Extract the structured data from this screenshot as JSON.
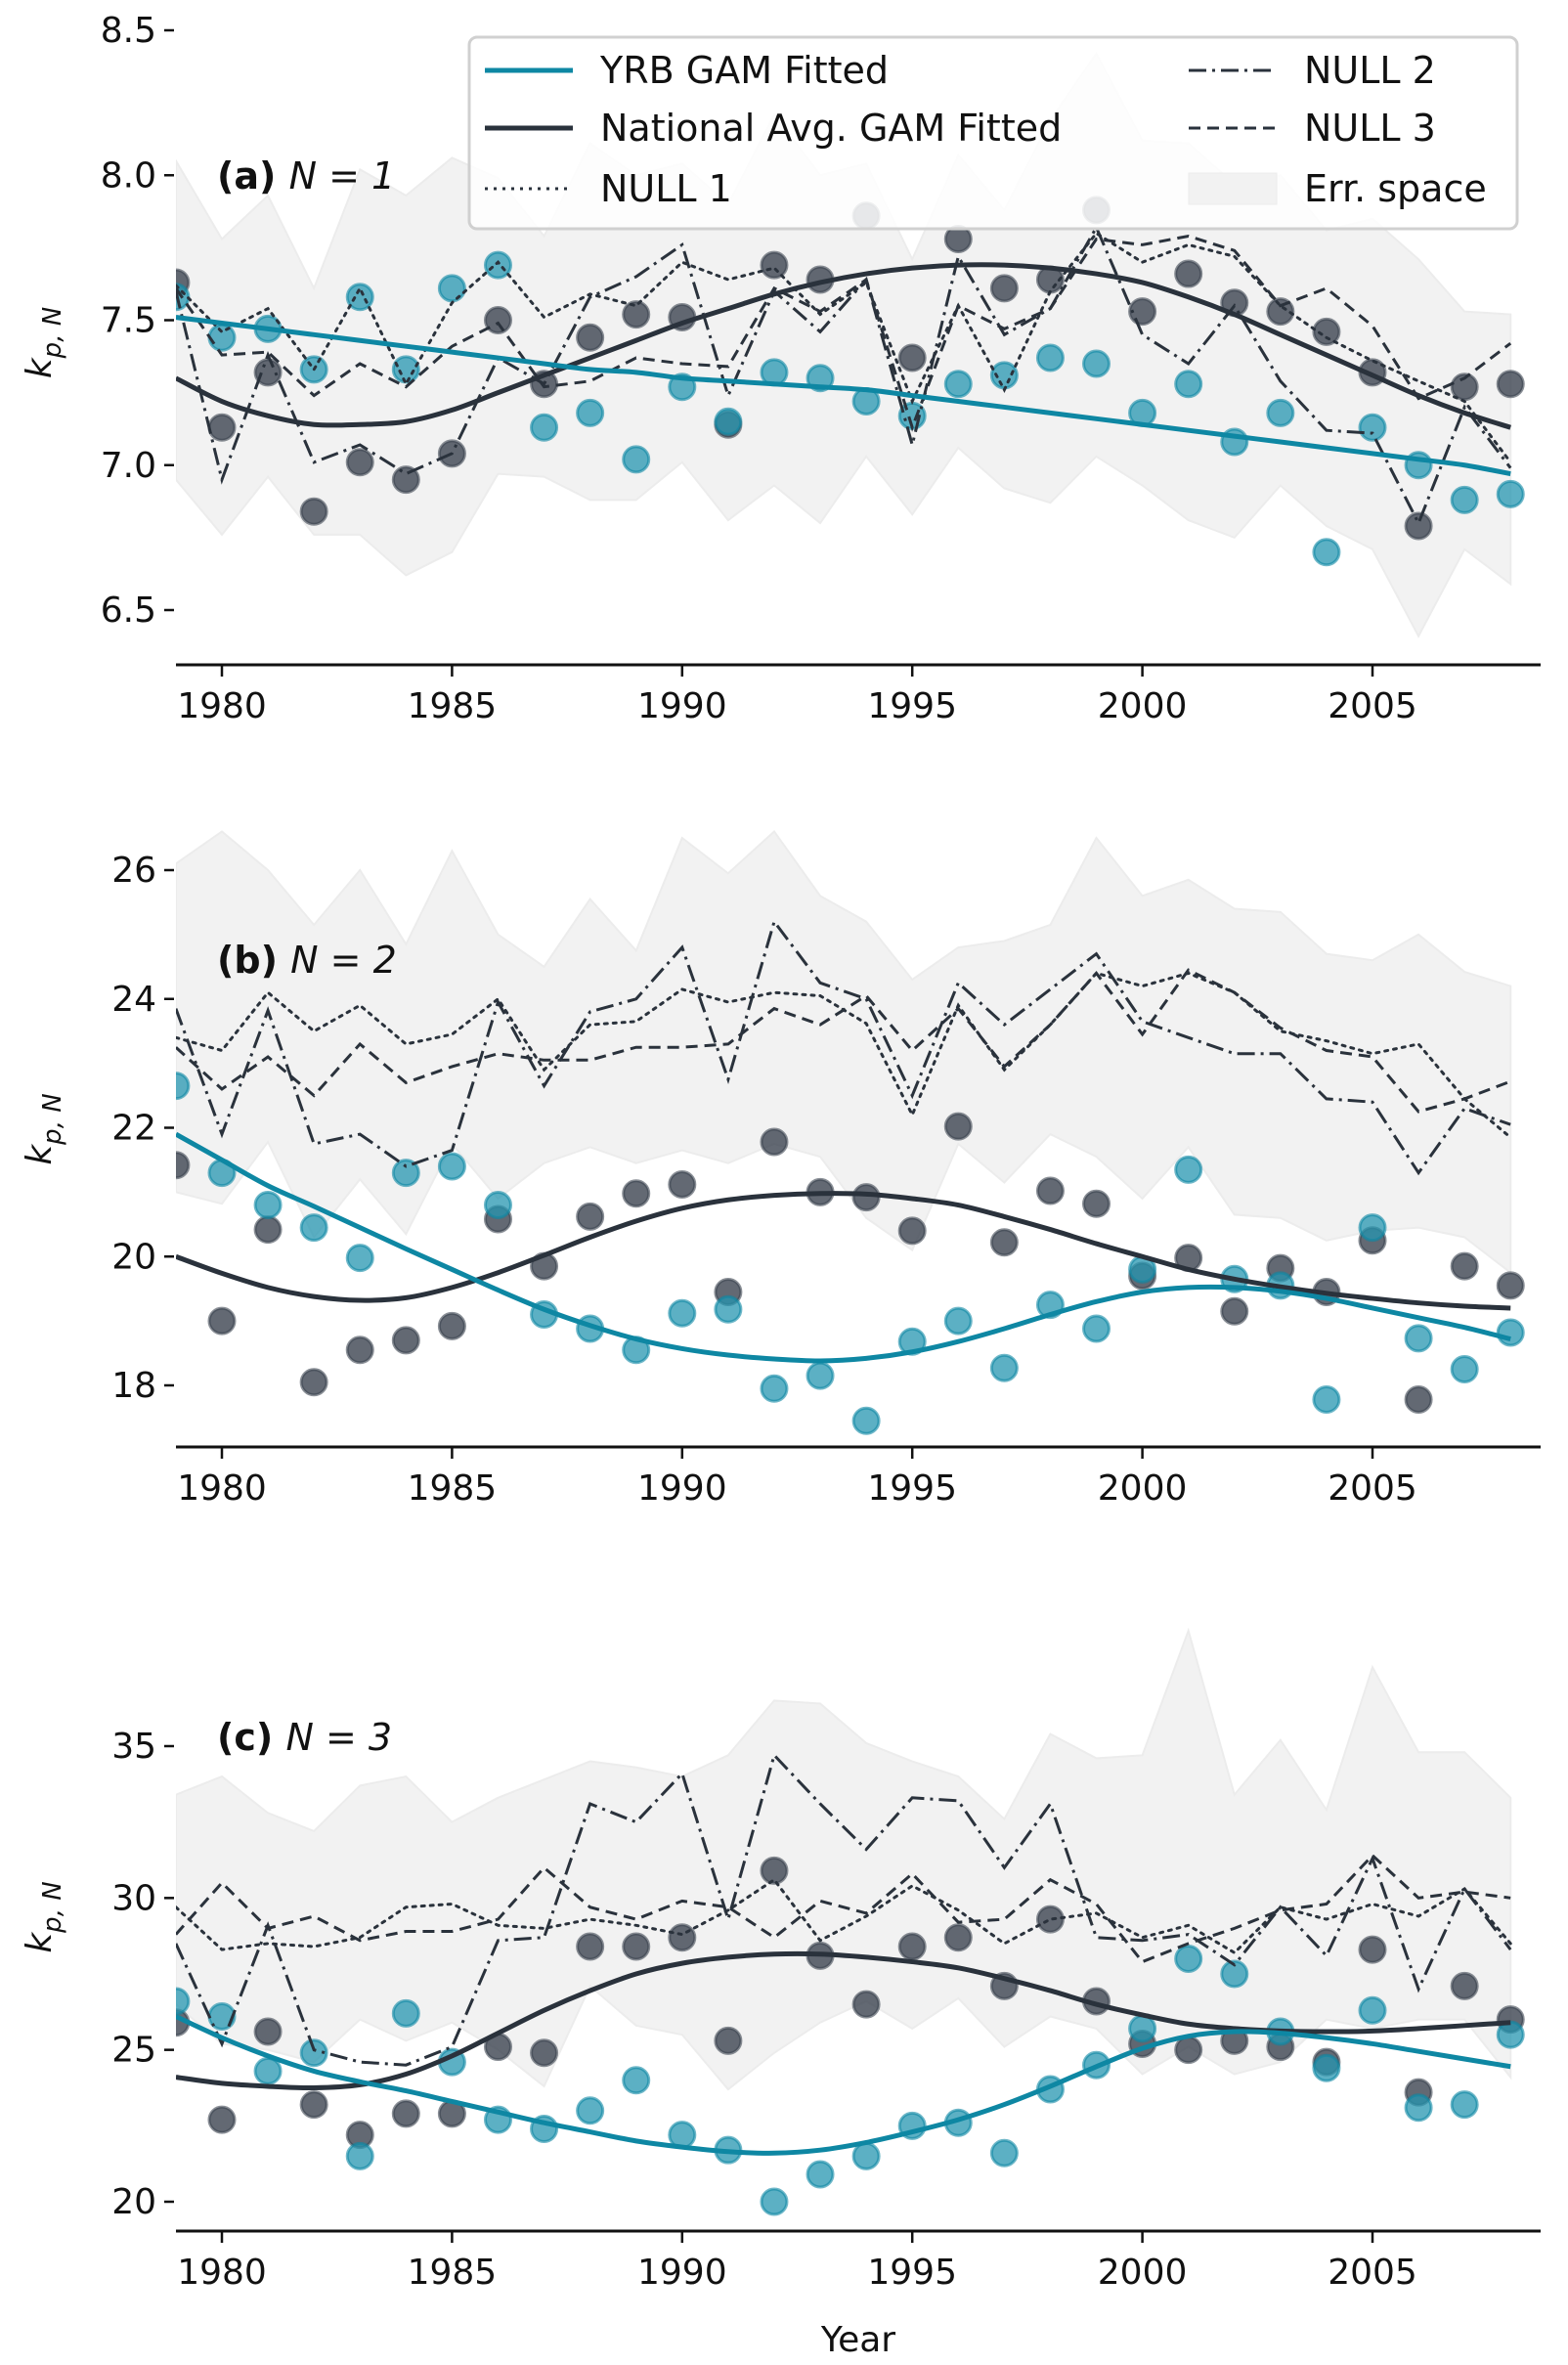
{
  "chart_data": {
    "type": "line",
    "colors": {
      "yrb": "#0e87a3",
      "national": "#2a323c",
      "null": "#2a323c",
      "err": "#f2f2f2"
    },
    "legend": {
      "placement": "top-right",
      "entries": [
        {
          "label": "YRB GAM Fitted",
          "style": "solid-yrb"
        },
        {
          "label": "National Avg. GAM Fitted",
          "style": "solid-national"
        },
        {
          "label": "NULL 1",
          "style": "dotted"
        },
        {
          "label": "NULL 2",
          "style": "dashdot"
        },
        {
          "label": "NULL 3",
          "style": "dashed"
        },
        {
          "label": "Err. space",
          "style": "patch"
        }
      ]
    },
    "xlabel": "Year",
    "x": [
      1979,
      1980,
      1981,
      1982,
      1983,
      1984,
      1985,
      1986,
      1987,
      1988,
      1989,
      1990,
      1991,
      1992,
      1993,
      1994,
      1995,
      1996,
      1997,
      1998,
      1999,
      2000,
      2001,
      2002,
      2003,
      2004,
      2005,
      2006,
      2007,
      2008
    ],
    "xticks": [
      1980,
      1985,
      1990,
      1995,
      2000,
      2005
    ],
    "xlim": [
      1978.5,
      2008
    ],
    "panels": [
      {
        "label_bold": "(a)",
        "label_rest": "N = 1",
        "ylabel": "k_{p,N}",
        "ylim": [
          6.3,
          8.55
        ],
        "yticks": [
          "6.5",
          "7.0",
          "7.5",
          "8.0",
          "8.5"
        ],
        "yrb_points": [
          7.58,
          7.44,
          7.47,
          7.33,
          7.58,
          7.33,
          7.61,
          7.69,
          7.13,
          7.18,
          7.02,
          7.27,
          7.15,
          7.32,
          7.3,
          7.22,
          7.17,
          7.28,
          7.31,
          7.37,
          7.35,
          7.18,
          7.28,
          7.08,
          7.18,
          6.7,
          7.13,
          7.0,
          6.88,
          6.9
        ],
        "national_points": [
          7.63,
          7.13,
          7.32,
          6.84,
          7.01,
          6.95,
          7.04,
          7.5,
          7.28,
          7.44,
          7.52,
          7.51,
          7.14,
          7.69,
          7.64,
          7.86,
          7.37,
          7.78,
          7.61,
          7.64,
          7.88,
          7.53,
          7.66,
          7.56,
          7.53,
          7.46,
          7.32,
          6.79,
          7.27,
          7.28
        ],
        "yrb_fit": [
          7.51,
          7.49,
          7.47,
          7.45,
          7.43,
          7.41,
          7.39,
          7.37,
          7.35,
          7.33,
          7.32,
          7.3,
          7.29,
          7.28,
          7.27,
          7.26,
          7.24,
          7.22,
          7.2,
          7.18,
          7.16,
          7.14,
          7.12,
          7.1,
          7.08,
          7.06,
          7.04,
          7.02,
          7.0,
          6.97
        ],
        "national_fit": [
          7.3,
          7.22,
          7.17,
          7.14,
          7.14,
          7.15,
          7.19,
          7.25,
          7.31,
          7.37,
          7.43,
          7.49,
          7.54,
          7.59,
          7.63,
          7.66,
          7.68,
          7.69,
          7.69,
          7.68,
          7.66,
          7.63,
          7.58,
          7.52,
          7.45,
          7.38,
          7.31,
          7.24,
          7.18,
          7.13
        ],
        "null1": [
          7.62,
          7.46,
          7.54,
          7.33,
          7.61,
          7.28,
          7.56,
          7.7,
          7.51,
          7.59,
          7.55,
          7.7,
          7.64,
          7.68,
          7.52,
          7.63,
          7.22,
          7.55,
          7.26,
          7.6,
          7.8,
          7.7,
          7.76,
          7.72,
          7.55,
          7.44,
          7.36,
          7.29,
          7.22,
          7.01
        ],
        "null2": [
          7.6,
          6.95,
          7.38,
          7.01,
          7.07,
          6.97,
          7.04,
          7.37,
          7.28,
          7.58,
          7.65,
          7.76,
          7.24,
          7.6,
          7.46,
          7.64,
          7.07,
          7.72,
          7.45,
          7.54,
          7.82,
          7.45,
          7.35,
          7.55,
          7.29,
          7.12,
          7.11,
          6.8,
          7.2,
          6.99
        ],
        "null3": [
          7.61,
          7.38,
          7.39,
          7.24,
          7.35,
          7.27,
          7.41,
          7.49,
          7.27,
          7.29,
          7.37,
          7.35,
          7.34,
          7.61,
          7.53,
          7.64,
          7.13,
          7.55,
          7.47,
          7.54,
          7.78,
          7.76,
          7.79,
          7.74,
          7.55,
          7.61,
          7.48,
          7.23,
          7.3,
          7.42
        ],
        "err_upper": [
          8.05,
          7.78,
          7.93,
          7.61,
          8.02,
          7.93,
          8.06,
          7.99,
          7.79,
          8.11,
          8.0,
          8.04,
          7.9,
          8.21,
          8.0,
          8.04,
          7.71,
          8.07,
          7.88,
          8.19,
          8.42,
          8.12,
          8.11,
          7.97,
          8.0,
          7.81,
          7.85,
          7.71,
          7.53,
          7.52
        ],
        "err_lower": [
          6.95,
          6.76,
          6.96,
          6.76,
          6.76,
          6.62,
          6.7,
          6.97,
          6.96,
          6.88,
          6.88,
          7.01,
          6.81,
          6.93,
          6.8,
          7.03,
          6.83,
          7.06,
          6.92,
          6.87,
          7.03,
          6.93,
          6.81,
          6.75,
          6.93,
          6.79,
          6.71,
          6.41,
          6.71,
          6.59
        ]
      },
      {
        "label_bold": "(b)",
        "label_rest": "N = 2",
        "ylabel": "k_{p,N}",
        "ylim": [
          17.0,
          26.9
        ],
        "yticks": [
          "18",
          "20",
          "22",
          "24",
          "26"
        ],
        "yrb_points": [
          22.65,
          21.3,
          20.8,
          20.45,
          19.98,
          21.3,
          21.4,
          20.8,
          19.1,
          18.88,
          18.55,
          19.12,
          19.18,
          17.95,
          18.15,
          17.45,
          18.68,
          19.0,
          18.27,
          19.25,
          18.88,
          19.8,
          21.35,
          19.65,
          19.55,
          17.78,
          20.45,
          18.73,
          18.25,
          18.82
        ],
        "national_points": [
          21.42,
          19.0,
          20.42,
          18.05,
          18.55,
          18.7,
          18.92,
          20.58,
          19.85,
          20.62,
          20.98,
          21.12,
          19.45,
          21.78,
          21.0,
          20.92,
          20.4,
          22.02,
          20.22,
          21.02,
          20.82,
          19.7,
          19.98,
          19.15,
          19.82,
          19.45,
          20.25,
          17.78,
          19.85,
          19.55
        ],
        "yrb_fit": [
          21.9,
          21.5,
          21.1,
          20.78,
          20.45,
          20.12,
          19.8,
          19.48,
          19.18,
          18.93,
          18.72,
          18.57,
          18.47,
          18.41,
          18.38,
          18.42,
          18.52,
          18.68,
          18.88,
          19.1,
          19.3,
          19.45,
          19.52,
          19.52,
          19.46,
          19.35,
          19.2,
          19.05,
          18.9,
          18.72
        ],
        "national_fit": [
          20.0,
          19.74,
          19.52,
          19.38,
          19.32,
          19.36,
          19.52,
          19.75,
          20.02,
          20.3,
          20.55,
          20.75,
          20.88,
          20.95,
          20.98,
          20.97,
          20.9,
          20.8,
          20.62,
          20.42,
          20.2,
          20.0,
          19.8,
          19.65,
          19.53,
          19.43,
          19.35,
          19.28,
          19.23,
          19.2
        ],
        "null1": [
          23.4,
          23.2,
          24.1,
          23.5,
          23.9,
          23.3,
          23.45,
          24.0,
          22.9,
          23.6,
          23.65,
          24.15,
          23.95,
          24.1,
          24.05,
          23.62,
          22.2,
          23.9,
          22.9,
          23.6,
          24.4,
          24.2,
          24.4,
          24.1,
          23.5,
          23.35,
          23.15,
          23.3,
          22.45,
          21.85
        ],
        "null2": [
          23.85,
          21.9,
          23.82,
          21.75,
          21.9,
          21.4,
          21.65,
          23.95,
          22.65,
          23.8,
          24.0,
          24.8,
          22.75,
          25.2,
          24.25,
          24.0,
          22.5,
          24.25,
          23.6,
          24.15,
          24.7,
          23.65,
          23.4,
          23.15,
          23.15,
          22.45,
          22.4,
          21.3,
          22.3,
          22.05
        ],
        "null3": [
          23.25,
          22.6,
          23.1,
          22.5,
          23.3,
          22.7,
          22.95,
          23.15,
          23.05,
          23.05,
          23.25,
          23.25,
          23.3,
          23.85,
          23.6,
          24.05,
          23.2,
          23.85,
          22.95,
          23.6,
          24.4,
          23.45,
          24.45,
          24.1,
          23.55,
          23.2,
          23.1,
          22.25,
          22.45,
          22.72
        ],
        "err_upper": [
          26.1,
          26.6,
          26.0,
          25.15,
          26.0,
          24.85,
          26.3,
          25.0,
          24.5,
          25.55,
          24.75,
          26.5,
          25.95,
          26.6,
          25.6,
          25.2,
          24.3,
          24.8,
          24.9,
          25.15,
          26.5,
          25.6,
          25.85,
          25.4,
          25.35,
          24.7,
          24.6,
          25.0,
          24.42,
          24.2
        ],
        "err_lower": [
          21.0,
          20.82,
          21.78,
          20.3,
          21.2,
          20.35,
          21.75,
          20.9,
          21.45,
          21.7,
          21.45,
          21.65,
          21.45,
          21.75,
          21.55,
          20.6,
          20.1,
          21.75,
          21.15,
          21.9,
          21.55,
          20.9,
          21.7,
          20.65,
          20.6,
          20.25,
          20.4,
          20.45,
          20.3,
          19.75
        ]
      },
      {
        "label_bold": "(c)",
        "label_rest": "N = 3",
        "ylabel": "k_{p,N}",
        "ylim": [
          19.3,
          39.1
        ],
        "yticks": [
          "20",
          "25",
          "30",
          "35"
        ],
        "yrb_points": [
          26.6,
          26.1,
          24.3,
          24.9,
          21.5,
          26.2,
          24.6,
          22.7,
          22.4,
          23.0,
          24.0,
          22.2,
          21.7,
          20.0,
          20.9,
          21.5,
          22.5,
          22.6,
          21.6,
          23.7,
          24.5,
          25.7,
          28.0,
          27.5,
          25.6,
          24.4,
          26.3,
          23.1,
          23.2,
          25.5
        ],
        "national_points": [
          25.9,
          22.7,
          25.6,
          23.2,
          22.2,
          22.9,
          22.9,
          25.1,
          24.9,
          28.4,
          28.4,
          28.7,
          25.3,
          30.9,
          28.1,
          26.5,
          28.4,
          28.7,
          27.1,
          29.3,
          26.6,
          25.2,
          25.0,
          25.3,
          25.1,
          24.6,
          28.3,
          23.6,
          27.1,
          26.0
        ],
        "yrb_fit": [
          26.1,
          25.4,
          24.8,
          24.3,
          23.95,
          23.65,
          23.3,
          22.95,
          22.6,
          22.3,
          22.0,
          21.8,
          21.65,
          21.6,
          21.7,
          21.95,
          22.3,
          22.7,
          23.2,
          23.8,
          24.45,
          25.05,
          25.45,
          25.6,
          25.55,
          25.4,
          25.2,
          24.95,
          24.7,
          24.45
        ],
        "national_fit": [
          24.1,
          23.9,
          23.8,
          23.75,
          23.85,
          24.2,
          24.8,
          25.55,
          26.3,
          26.95,
          27.5,
          27.85,
          28.05,
          28.15,
          28.15,
          28.05,
          27.9,
          27.7,
          27.35,
          26.95,
          26.5,
          26.15,
          25.85,
          25.7,
          25.62,
          25.6,
          25.62,
          25.7,
          25.8,
          25.9
        ],
        "null1": [
          29.7,
          28.3,
          28.5,
          28.4,
          28.7,
          29.7,
          29.8,
          29.1,
          29.0,
          29.3,
          29.1,
          28.8,
          29.6,
          30.6,
          28.6,
          29.4,
          30.4,
          29.6,
          28.5,
          29.3,
          29.5,
          28.7,
          29.1,
          28.2,
          29.7,
          29.3,
          29.8,
          29.4,
          30.3,
          28.5
        ],
        "null2": [
          28.5,
          25.2,
          29.1,
          25.0,
          24.6,
          24.5,
          25.1,
          28.6,
          28.7,
          33.1,
          32.5,
          34.1,
          29.3,
          34.7,
          33.1,
          31.6,
          33.3,
          33.2,
          31.0,
          33.1,
          28.7,
          28.6,
          28.8,
          27.8,
          29.7,
          28.1,
          31.3,
          27.0,
          30.3,
          28.3
        ],
        "null3": [
          28.8,
          30.5,
          29.0,
          29.4,
          28.6,
          28.9,
          28.9,
          29.3,
          31.0,
          29.7,
          29.3,
          29.9,
          29.7,
          28.7,
          29.9,
          29.5,
          30.8,
          29.2,
          29.3,
          30.6,
          29.8,
          27.9,
          28.5,
          29.0,
          29.6,
          29.8,
          31.4,
          30.0,
          30.2,
          30.0
        ],
        "err_upper": [
          33.4,
          34.0,
          32.8,
          32.2,
          33.7,
          34.0,
          32.5,
          33.3,
          33.9,
          34.5,
          34.3,
          34.0,
          34.7,
          36.5,
          36.4,
          35.1,
          34.5,
          34.0,
          32.6,
          35.4,
          34.6,
          34.7,
          38.8,
          33.4,
          35.2,
          32.9,
          37.6,
          34.8,
          34.8,
          33.3
        ],
        "err_lower": [
          26.5,
          25.2,
          25.0,
          24.6,
          26.0,
          25.3,
          25.9,
          25.0,
          23.8,
          27.1,
          25.8,
          25.5,
          23.7,
          24.9,
          25.9,
          26.6,
          25.7,
          26.7,
          25.1,
          26.1,
          25.7,
          24.2,
          25.1,
          24.2,
          24.6,
          26.0,
          25.7,
          26.0,
          26.0,
          24.1
        ]
      }
    ]
  }
}
